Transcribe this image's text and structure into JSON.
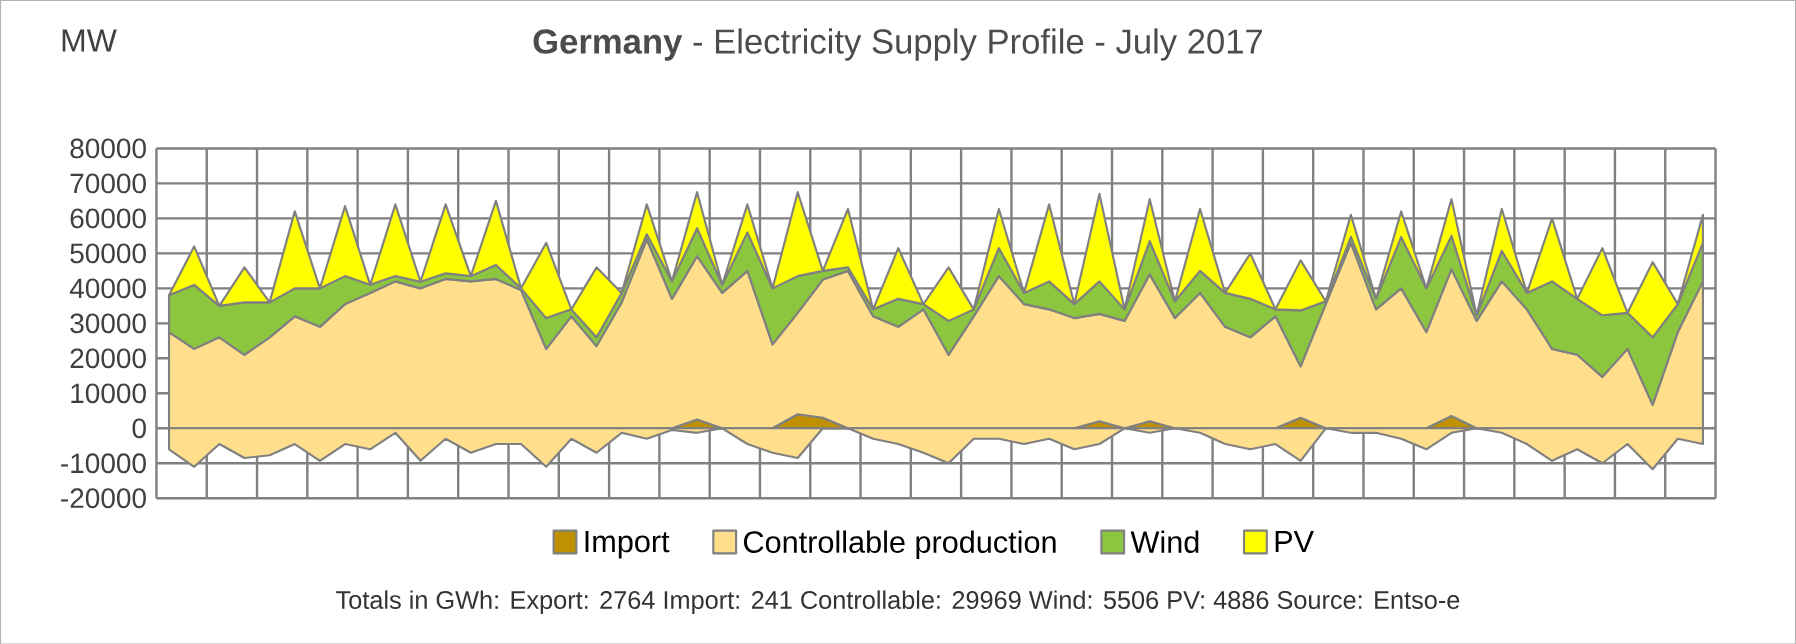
{
  "chart_data": [
    {
      "type": "area",
      "stacked": true,
      "title": "**Germany** - Electricity Supply Profile - July 2017",
      "ylabel": "MW",
      "annotations": [
        "Totals in GWh:   Export:  2764   Import:  241   Controllable:  29969   Wind:  5506   PV:  4886   Source: Entso-e"
      ],
      "categories": [
        null,
        null,
        null,
        null,
        null,
        null,
        null,
        null,
        null,
        null,
        null,
        null,
        null,
        null,
        null,
        null,
        null,
        null,
        null,
        null,
        null,
        null,
        null,
        null,
        null,
        null,
        null,
        null,
        null,
        null,
        null,
        null,
        null,
        null,
        null,
        null,
        null,
        null,
        null,
        null,
        null,
        null,
        null,
        null,
        null,
        null,
        null,
        null,
        null,
        null,
        null,
        null,
        null,
        null,
        null,
        null,
        null,
        null,
        null,
        null,
        null,
        null
      ],
      "series": [
        {
          "name": "Import",
          "color": "#bf9000",
          "values": [
            0,
            0,
            0,
            0,
            0,
            0,
            0,
            0,
            0,
            0,
            0,
            0,
            0,
            0,
            0,
            0,
            0,
            0,
            0,
            0,
            0,
            2500,
            0,
            0,
            0,
            4000,
            3000,
            0,
            0,
            0,
            0,
            0,
            0,
            0,
            0,
            0,
            0,
            2000,
            0,
            2000,
            0,
            0,
            0,
            0,
            0,
            3000,
            0,
            0,
            0,
            0,
            0,
            3500,
            0,
            0,
            0,
            0,
            0,
            0,
            0,
            0,
            0,
            0
          ]
        },
        {
          "name": "Controllable production",
          "color": "#ffdf8c",
          "values": [
            27500,
            22700,
            26000,
            21000,
            26000,
            32000,
            29000,
            35500,
            38700,
            42000,
            40000,
            42700,
            42000,
            42700,
            39500,
            22700,
            32000,
            23500,
            36000,
            54000,
            37000,
            46700,
            38700,
            45000,
            24000,
            29000,
            39500,
            45000,
            32000,
            29000,
            34000,
            21000,
            32000,
            43500,
            35500,
            34000,
            31500,
            30700,
            30700,
            42000,
            31500,
            38700,
            29000,
            26000,
            32000,
            14700,
            35500,
            53000,
            34000,
            40000,
            27500,
            42000,
            30700,
            42000,
            34000,
            22700,
            21000,
            14700,
            22700,
            6700,
            27500,
            42000
          ]
        },
        {
          "name": "Wind",
          "color": "#8cc63f",
          "values": [
            10500,
            18300,
            9000,
            15000,
            10000,
            8000,
            11000,
            8000,
            2300,
            1500,
            1900,
            1600,
            1500,
            4000,
            500,
            8800,
            2000,
            2500,
            2700,
            1500,
            5000,
            8000,
            2300,
            11000,
            16000,
            10500,
            2500,
            1000,
            2000,
            8000,
            1500,
            9700,
            2000,
            8000,
            3200,
            8000,
            4000,
            9300,
            3300,
            9500,
            4800,
            6300,
            9700,
            11000,
            2000,
            16000,
            800,
            1700,
            3000,
            14700,
            12500,
            9500,
            1600,
            8700,
            4700,
            19300,
            16000,
            17600,
            10300,
            19300,
            8000,
            11000
          ]
        },
        {
          "name": "PV",
          "color": "#ffff00",
          "values": [
            0,
            11000,
            0,
            10000,
            0,
            22000,
            0,
            20000,
            0,
            20500,
            0,
            19700,
            0,
            18300,
            0,
            21500,
            0,
            20000,
            0,
            8500,
            0,
            10300,
            0,
            8000,
            0,
            24000,
            0,
            16700,
            0,
            14500,
            0,
            15300,
            0,
            11200,
            0,
            22000,
            0,
            25000,
            0,
            12000,
            0,
            17700,
            0,
            13000,
            0,
            14300,
            0,
            6300,
            0,
            7300,
            0,
            10500,
            0,
            12000,
            0,
            18000,
            0,
            19200,
            0,
            21500,
            0,
            8000
          ]
        }
      ],
      "ylim": [
        -20000,
        80000
      ],
      "yticks": [
        -20000,
        -10000,
        0,
        10000,
        20000,
        30000,
        40000,
        50000,
        60000,
        70000,
        80000
      ],
      "grid": true,
      "legend": "bottom",
      "tick_labels": "y"
    },
    {
      "type": "area",
      "categories": [
        null,
        null,
        null,
        null,
        null,
        null,
        null,
        null,
        null,
        null,
        null,
        null,
        null,
        null,
        null,
        null,
        null,
        null,
        null,
        null,
        null,
        null,
        null,
        null,
        null,
        null,
        null,
        null,
        null,
        null,
        null,
        null,
        null,
        null,
        null,
        null,
        null,
        null,
        null,
        null,
        null,
        null,
        null,
        null,
        null,
        null,
        null,
        null,
        null,
        null,
        null,
        null,
        null,
        null,
        null,
        null,
        null,
        null,
        null,
        null,
        null,
        null
      ],
      "series": [
        {
          "color": "#ffdf8c",
          "values": [
            -6000,
            -11000,
            -4500,
            -8500,
            -7700,
            -4500,
            -9300,
            -4500,
            -6000,
            -1300,
            -9300,
            -3000,
            -7000,
            -4500,
            -4500,
            -11000,
            -3000,
            -7000,
            -1300,
            -3000,
            -500,
            -1300,
            0,
            -4500,
            -7000,
            -8500,
            0,
            0,
            -3000,
            -4500,
            -7000,
            -10000,
            -3000,
            -3000,
            -4500,
            -3000,
            -6000,
            -4500,
            0,
            -1300,
            0,
            -1300,
            -4500,
            -6000,
            -4500,
            -9300,
            0,
            -1300,
            -1300,
            -3000,
            -6000,
            -1300,
            0,
            -1300,
            -4500,
            -9300,
            -6000,
            -10000,
            -4500,
            -11700,
            -3000,
            -4500
          ]
        }
      ],
      "ylim": [
        -20000,
        80000
      ],
      "tick_labels": false
    }
  ]
}
